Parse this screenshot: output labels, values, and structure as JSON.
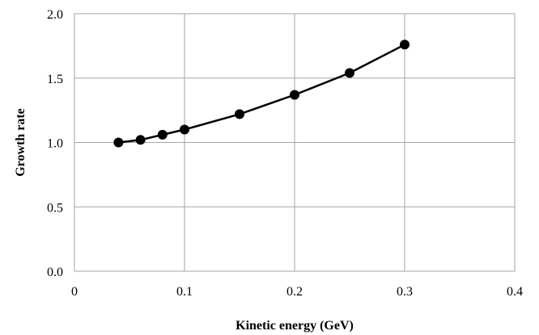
{
  "chart_data": {
    "type": "line",
    "title": "",
    "xlabel": "Kinetic energy (GeV)",
    "ylabel": "Growth rate",
    "xlim": [
      0,
      0.4
    ],
    "ylim": [
      0,
      2.0
    ],
    "x_ticks": [
      0,
      0.1,
      0.2,
      0.3,
      0.4
    ],
    "x_tick_labels": [
      "0",
      "0.1",
      "0.2",
      "0.3",
      "0.4"
    ],
    "y_ticks": [
      0,
      0.5,
      1.0,
      1.5,
      2.0
    ],
    "y_tick_labels": [
      "0.0",
      "0.5",
      "1.0",
      "1.5",
      "2.0"
    ],
    "grid": true,
    "legend": "none",
    "series": [
      {
        "x": [
          0.04,
          0.06,
          0.08,
          0.1,
          0.15,
          0.2,
          0.25,
          0.3
        ],
        "y": [
          1.0,
          1.02,
          1.06,
          1.1,
          1.22,
          1.37,
          1.54,
          1.76
        ],
        "color": "#000000",
        "marker": "circle"
      }
    ]
  }
}
